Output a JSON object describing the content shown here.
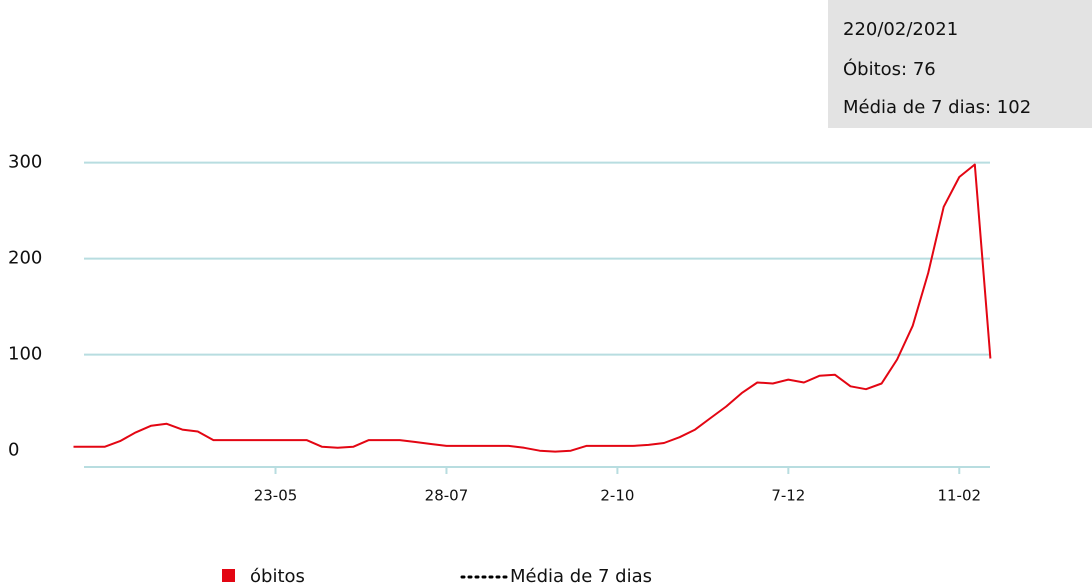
{
  "chart_data": {
    "type": "line",
    "tooltip": {
      "date": "220/02/2021",
      "deaths": "Óbitos: 76",
      "average": "Média de 7 dias: 102"
    },
    "categories": [
      null,
      null,
      null,
      null,
      null,
      null,
      null,
      null,
      null,
      null,
      null,
      null,
      null,
      "23-05",
      null,
      null,
      null,
      null,
      null,
      null,
      null,
      null,
      null,
      null,
      "28-07",
      null,
      null,
      null,
      null,
      null,
      null,
      null,
      null,
      null,
      null,
      "2-10",
      null,
      null,
      null,
      null,
      null,
      null,
      null,
      null,
      null,
      null,
      "7-12",
      null,
      null,
      null,
      null,
      null,
      null,
      null,
      null,
      null,
      null,
      "11-02",
      null,
      null
    ],
    "series": [
      {
        "name": "óbitos",
        "color": "#e30613",
        "values": [
          4,
          4,
          4,
          10,
          19,
          26,
          28,
          22,
          20,
          11,
          11,
          11,
          11,
          11,
          11,
          11,
          4,
          3,
          4,
          11,
          11,
          11,
          9,
          7,
          5,
          5,
          5,
          5,
          5,
          3,
          0,
          -1,
          0,
          5,
          5,
          5,
          5,
          6,
          8,
          14,
          22,
          34,
          46,
          60,
          71,
          70,
          74,
          71,
          78,
          79,
          67,
          64,
          70,
          95,
          130,
          185,
          254,
          285,
          298,
          96
        ]
      },
      {
        "name": "Média de 7 dias",
        "color": "#000000"
      }
    ],
    "ylim": [
      -17,
      310
    ],
    "yticks": [
      0,
      100,
      200,
      300
    ],
    "grid": true
  }
}
